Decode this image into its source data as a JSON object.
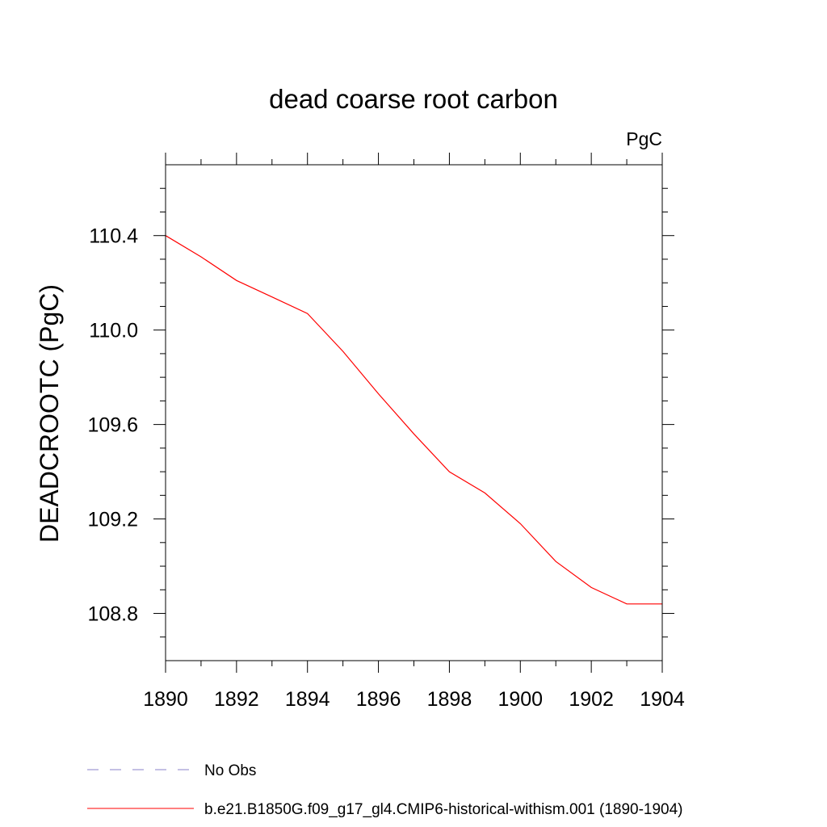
{
  "chart_data": {
    "type": "line",
    "title": "dead coarse root carbon",
    "units_label": "PgC",
    "ylabel": "DEADCROOTC  (PgC)",
    "xlabel": "",
    "xlim": [
      1890,
      1904
    ],
    "ylim": [
      108.6,
      110.7
    ],
    "x_ticks": [
      1890,
      1892,
      1894,
      1896,
      1898,
      1900,
      1902,
      1904
    ],
    "y_ticks": [
      108.8,
      109.2,
      109.6,
      110.0,
      110.4
    ],
    "x_tick_labels": [
      "1890",
      "1892",
      "1894",
      "1896",
      "1898",
      "1900",
      "1902",
      "1904"
    ],
    "y_tick_labels": [
      "108.8",
      "109.2",
      "109.6",
      "110.0",
      "110.4"
    ],
    "grid": false,
    "legend_position": "bottom-left",
    "x": [
      1890,
      1891,
      1892,
      1893,
      1894,
      1895,
      1896,
      1897,
      1898,
      1899,
      1900,
      1901,
      1902,
      1903,
      1904
    ],
    "series": [
      {
        "name": "b.e21.B1850G.f09_g17_gl4.CMIP6-historical-withism.001 (1890-1904)",
        "color": "#ff0000",
        "dash": "solid",
        "values": [
          110.4,
          110.31,
          110.21,
          110.14,
          110.07,
          109.91,
          109.73,
          109.56,
          109.4,
          109.31,
          109.18,
          109.02,
          108.91,
          108.84,
          108.84
        ]
      }
    ],
    "legend": [
      {
        "label": "No Obs",
        "color": "#8a80c8",
        "dash": "dashed"
      },
      {
        "label": "b.e21.B1850G.f09_g17_gl4.CMIP6-historical-withism.001 (1890-1904)",
        "color": "#ff0000",
        "dash": "solid"
      }
    ]
  }
}
